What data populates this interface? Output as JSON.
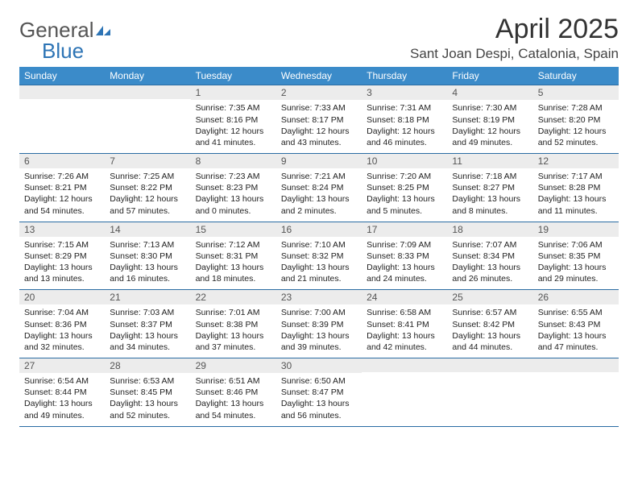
{
  "logo": {
    "word1": "General",
    "word2": "Blue",
    "icon_name": "sail-icon",
    "color_gray": "#666666",
    "color_blue": "#2d74b5"
  },
  "title": "April 2025",
  "location": "Sant Joan Despi, Catalonia, Spain",
  "colors": {
    "header_bg": "#3b8bc9",
    "header_text": "#ffffff",
    "daynum_bg": "#ececec",
    "daynum_text": "#555555",
    "cell_border": "#2a6ca3",
    "body_text": "#222222",
    "page_bg": "#ffffff"
  },
  "typography": {
    "title_fontsize": 34,
    "location_fontsize": 17,
    "dow_fontsize": 12,
    "daynum_fontsize": 12,
    "cell_fontsize": 10.5,
    "font_family": "Arial"
  },
  "days_of_week": [
    "Sunday",
    "Monday",
    "Tuesday",
    "Wednesday",
    "Thursday",
    "Friday",
    "Saturday"
  ],
  "weeks": [
    [
      {
        "n": "",
        "lines": []
      },
      {
        "n": "",
        "lines": []
      },
      {
        "n": "1",
        "lines": [
          "Sunrise: 7:35 AM",
          "Sunset: 8:16 PM",
          "Daylight: 12 hours and 41 minutes."
        ]
      },
      {
        "n": "2",
        "lines": [
          "Sunrise: 7:33 AM",
          "Sunset: 8:17 PM",
          "Daylight: 12 hours and 43 minutes."
        ]
      },
      {
        "n": "3",
        "lines": [
          "Sunrise: 7:31 AM",
          "Sunset: 8:18 PM",
          "Daylight: 12 hours and 46 minutes."
        ]
      },
      {
        "n": "4",
        "lines": [
          "Sunrise: 7:30 AM",
          "Sunset: 8:19 PM",
          "Daylight: 12 hours and 49 minutes."
        ]
      },
      {
        "n": "5",
        "lines": [
          "Sunrise: 7:28 AM",
          "Sunset: 8:20 PM",
          "Daylight: 12 hours and 52 minutes."
        ]
      }
    ],
    [
      {
        "n": "6",
        "lines": [
          "Sunrise: 7:26 AM",
          "Sunset: 8:21 PM",
          "Daylight: 12 hours and 54 minutes."
        ]
      },
      {
        "n": "7",
        "lines": [
          "Sunrise: 7:25 AM",
          "Sunset: 8:22 PM",
          "Daylight: 12 hours and 57 minutes."
        ]
      },
      {
        "n": "8",
        "lines": [
          "Sunrise: 7:23 AM",
          "Sunset: 8:23 PM",
          "Daylight: 13 hours and 0 minutes."
        ]
      },
      {
        "n": "9",
        "lines": [
          "Sunrise: 7:21 AM",
          "Sunset: 8:24 PM",
          "Daylight: 13 hours and 2 minutes."
        ]
      },
      {
        "n": "10",
        "lines": [
          "Sunrise: 7:20 AM",
          "Sunset: 8:25 PM",
          "Daylight: 13 hours and 5 minutes."
        ]
      },
      {
        "n": "11",
        "lines": [
          "Sunrise: 7:18 AM",
          "Sunset: 8:27 PM",
          "Daylight: 13 hours and 8 minutes."
        ]
      },
      {
        "n": "12",
        "lines": [
          "Sunrise: 7:17 AM",
          "Sunset: 8:28 PM",
          "Daylight: 13 hours and 11 minutes."
        ]
      }
    ],
    [
      {
        "n": "13",
        "lines": [
          "Sunrise: 7:15 AM",
          "Sunset: 8:29 PM",
          "Daylight: 13 hours and 13 minutes."
        ]
      },
      {
        "n": "14",
        "lines": [
          "Sunrise: 7:13 AM",
          "Sunset: 8:30 PM",
          "Daylight: 13 hours and 16 minutes."
        ]
      },
      {
        "n": "15",
        "lines": [
          "Sunrise: 7:12 AM",
          "Sunset: 8:31 PM",
          "Daylight: 13 hours and 18 minutes."
        ]
      },
      {
        "n": "16",
        "lines": [
          "Sunrise: 7:10 AM",
          "Sunset: 8:32 PM",
          "Daylight: 13 hours and 21 minutes."
        ]
      },
      {
        "n": "17",
        "lines": [
          "Sunrise: 7:09 AM",
          "Sunset: 8:33 PM",
          "Daylight: 13 hours and 24 minutes."
        ]
      },
      {
        "n": "18",
        "lines": [
          "Sunrise: 7:07 AM",
          "Sunset: 8:34 PM",
          "Daylight: 13 hours and 26 minutes."
        ]
      },
      {
        "n": "19",
        "lines": [
          "Sunrise: 7:06 AM",
          "Sunset: 8:35 PM",
          "Daylight: 13 hours and 29 minutes."
        ]
      }
    ],
    [
      {
        "n": "20",
        "lines": [
          "Sunrise: 7:04 AM",
          "Sunset: 8:36 PM",
          "Daylight: 13 hours and 32 minutes."
        ]
      },
      {
        "n": "21",
        "lines": [
          "Sunrise: 7:03 AM",
          "Sunset: 8:37 PM",
          "Daylight: 13 hours and 34 minutes."
        ]
      },
      {
        "n": "22",
        "lines": [
          "Sunrise: 7:01 AM",
          "Sunset: 8:38 PM",
          "Daylight: 13 hours and 37 minutes."
        ]
      },
      {
        "n": "23",
        "lines": [
          "Sunrise: 7:00 AM",
          "Sunset: 8:39 PM",
          "Daylight: 13 hours and 39 minutes."
        ]
      },
      {
        "n": "24",
        "lines": [
          "Sunrise: 6:58 AM",
          "Sunset: 8:41 PM",
          "Daylight: 13 hours and 42 minutes."
        ]
      },
      {
        "n": "25",
        "lines": [
          "Sunrise: 6:57 AM",
          "Sunset: 8:42 PM",
          "Daylight: 13 hours and 44 minutes."
        ]
      },
      {
        "n": "26",
        "lines": [
          "Sunrise: 6:55 AM",
          "Sunset: 8:43 PM",
          "Daylight: 13 hours and 47 minutes."
        ]
      }
    ],
    [
      {
        "n": "27",
        "lines": [
          "Sunrise: 6:54 AM",
          "Sunset: 8:44 PM",
          "Daylight: 13 hours and 49 minutes."
        ]
      },
      {
        "n": "28",
        "lines": [
          "Sunrise: 6:53 AM",
          "Sunset: 8:45 PM",
          "Daylight: 13 hours and 52 minutes."
        ]
      },
      {
        "n": "29",
        "lines": [
          "Sunrise: 6:51 AM",
          "Sunset: 8:46 PM",
          "Daylight: 13 hours and 54 minutes."
        ]
      },
      {
        "n": "30",
        "lines": [
          "Sunrise: 6:50 AM",
          "Sunset: 8:47 PM",
          "Daylight: 13 hours and 56 minutes."
        ]
      },
      {
        "n": "",
        "lines": []
      },
      {
        "n": "",
        "lines": []
      },
      {
        "n": "",
        "lines": []
      }
    ]
  ]
}
